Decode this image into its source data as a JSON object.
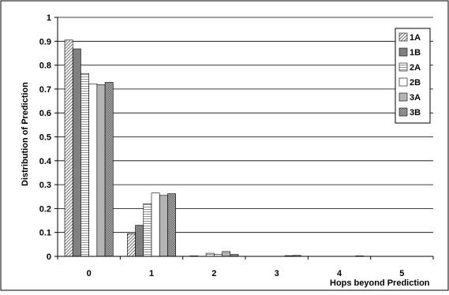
{
  "chart_data": {
    "type": "bar",
    "title": "",
    "xlabel": "Hops beyond Prediction",
    "ylabel": "Distribution of Prediction",
    "ylim": [
      0,
      1
    ],
    "yticks": [
      "0",
      "0.1",
      "0.2",
      "0.3",
      "0.4",
      "0.5",
      "0.6",
      "0.7",
      "0.8",
      "0.9",
      "1"
    ],
    "grid": true,
    "legend_position": "top-right",
    "categories": [
      "0",
      "1",
      "2",
      "3",
      "4",
      "5"
    ],
    "series": [
      {
        "name": "1A",
        "values": [
          0.905,
          0.095,
          0.002,
          0.0,
          0.0,
          0.0
        ],
        "pattern": "diag",
        "color": "#ffffff"
      },
      {
        "name": "1B",
        "values": [
          0.868,
          0.13,
          0.0,
          0.0,
          0.0,
          0.0
        ],
        "pattern": "solid",
        "color": "#808080"
      },
      {
        "name": "2A",
        "values": [
          0.765,
          0.22,
          0.013,
          0.0,
          0.0,
          0.0
        ],
        "pattern": "hstripe",
        "color": "#ffffff"
      },
      {
        "name": "2B",
        "values": [
          0.722,
          0.265,
          0.008,
          0.0,
          0.0,
          0.0
        ],
        "pattern": "solid",
        "color": "#ffffff"
      },
      {
        "name": "3A",
        "values": [
          0.718,
          0.255,
          0.02,
          0.003,
          0.0,
          0.0
        ],
        "pattern": "solid",
        "color": "#b4b4b4"
      },
      {
        "name": "3B",
        "values": [
          0.728,
          0.262,
          0.008,
          0.004,
          0.002,
          0.0
        ],
        "pattern": "cross",
        "color": "#8c8c8c"
      }
    ]
  }
}
